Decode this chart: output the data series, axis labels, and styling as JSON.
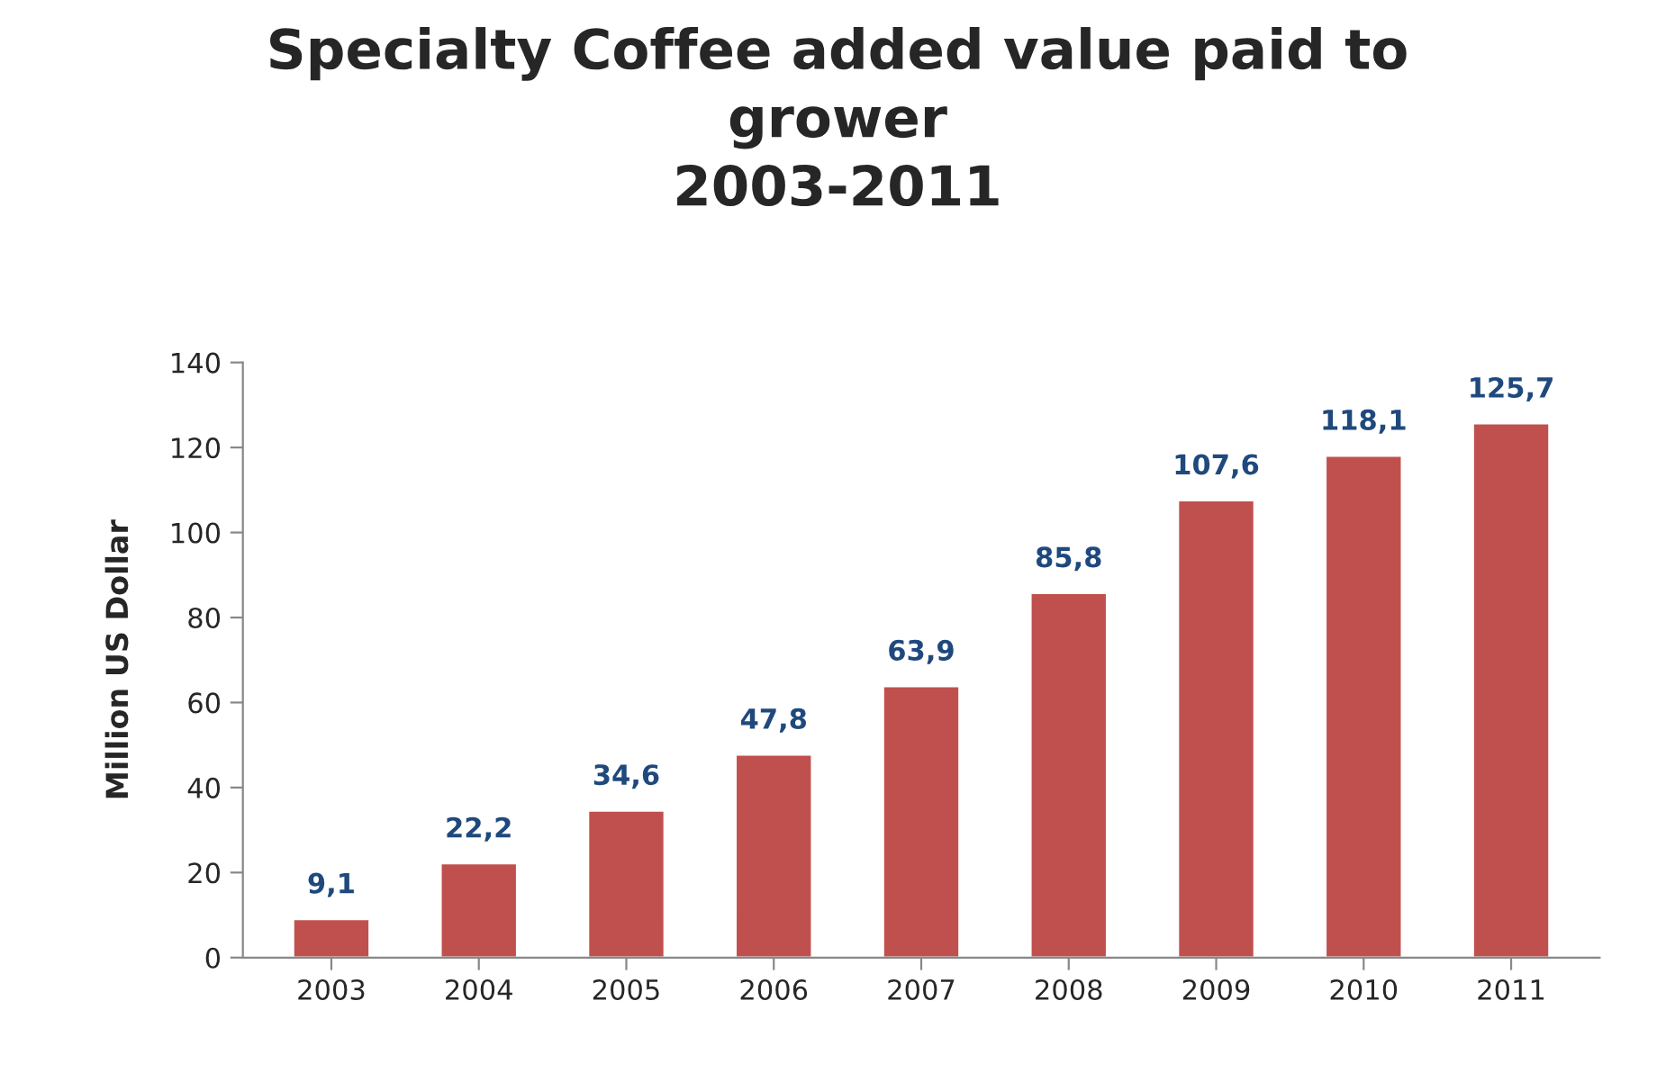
{
  "chart_data": {
    "type": "bar",
    "title": "Specialty Coffee added value paid to\ngrower\n2003-2011",
    "ylabel": "Million US Dollar",
    "categories": [
      "2003",
      "2004",
      "2005",
      "2006",
      "2007",
      "2008",
      "2009",
      "2010",
      "2011"
    ],
    "series": [
      {
        "color": "#c0504d",
        "values": [
          9.1,
          22.2,
          34.6,
          47.8,
          63.9,
          85.8,
          107.6,
          118.1,
          125.7
        ],
        "value_labels": [
          "9,1",
          "22,2",
          "34,6",
          "47,8",
          "63,9",
          "85,8",
          "107,6",
          "118,1",
          "125,7"
        ]
      }
    ],
    "ylim": [
      0,
      140
    ],
    "yticks": [
      0,
      20,
      40,
      60,
      80,
      100,
      120,
      140
    ],
    "grid": false,
    "legend": false
  }
}
